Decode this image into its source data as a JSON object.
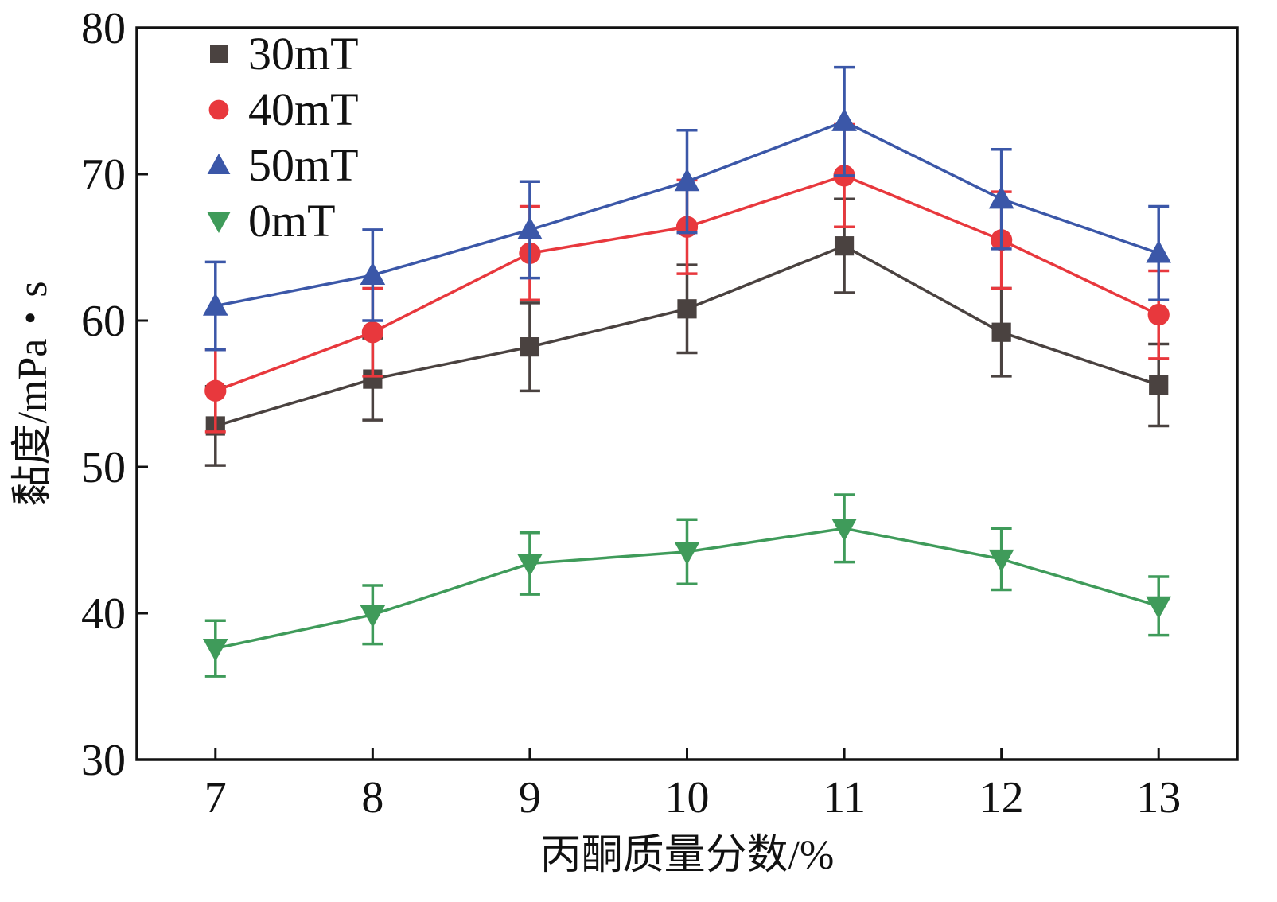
{
  "chart_data": {
    "type": "line",
    "title": "",
    "xlabel": "丙酮质量分数/%",
    "ylabel": "黏度/mPa・s",
    "x": [
      7,
      8,
      9,
      10,
      11,
      12,
      13
    ],
    "xlim": [
      6.5,
      13.5
    ],
    "ylim": [
      30,
      80
    ],
    "xticks": [
      "7",
      "8",
      "9",
      "10",
      "11",
      "12",
      "13"
    ],
    "yticks": [
      "30",
      "40",
      "50",
      "60",
      "70",
      "80"
    ],
    "legend_position": "top-left",
    "grid": false,
    "series": [
      {
        "name": "30mT",
        "color": "#4a4240",
        "marker": "square",
        "values": [
          52.8,
          56.0,
          58.2,
          60.8,
          65.1,
          59.2,
          55.6
        ],
        "errors": [
          2.7,
          2.8,
          3.0,
          3.0,
          3.2,
          3.0,
          2.8
        ]
      },
      {
        "name": "40mT",
        "color": "#e8383d",
        "marker": "circle",
        "values": [
          55.2,
          59.2,
          64.6,
          66.4,
          69.9,
          65.5,
          60.4
        ],
        "errors": [
          2.8,
          3.0,
          3.2,
          3.2,
          3.5,
          3.3,
          3.0
        ]
      },
      {
        "name": "50mT",
        "color": "#3b57a8",
        "marker": "triangle-up",
        "values": [
          61.0,
          63.1,
          66.2,
          69.5,
          73.6,
          68.3,
          64.6
        ],
        "errors": [
          3.0,
          3.1,
          3.3,
          3.5,
          3.7,
          3.4,
          3.2
        ]
      },
      {
        "name": "0mT",
        "color": "#3f9b5a",
        "marker": "triangle-down",
        "values": [
          37.6,
          39.9,
          43.4,
          44.2,
          45.8,
          43.7,
          40.5
        ],
        "errors": [
          1.9,
          2.0,
          2.1,
          2.2,
          2.3,
          2.1,
          2.0
        ]
      }
    ]
  }
}
